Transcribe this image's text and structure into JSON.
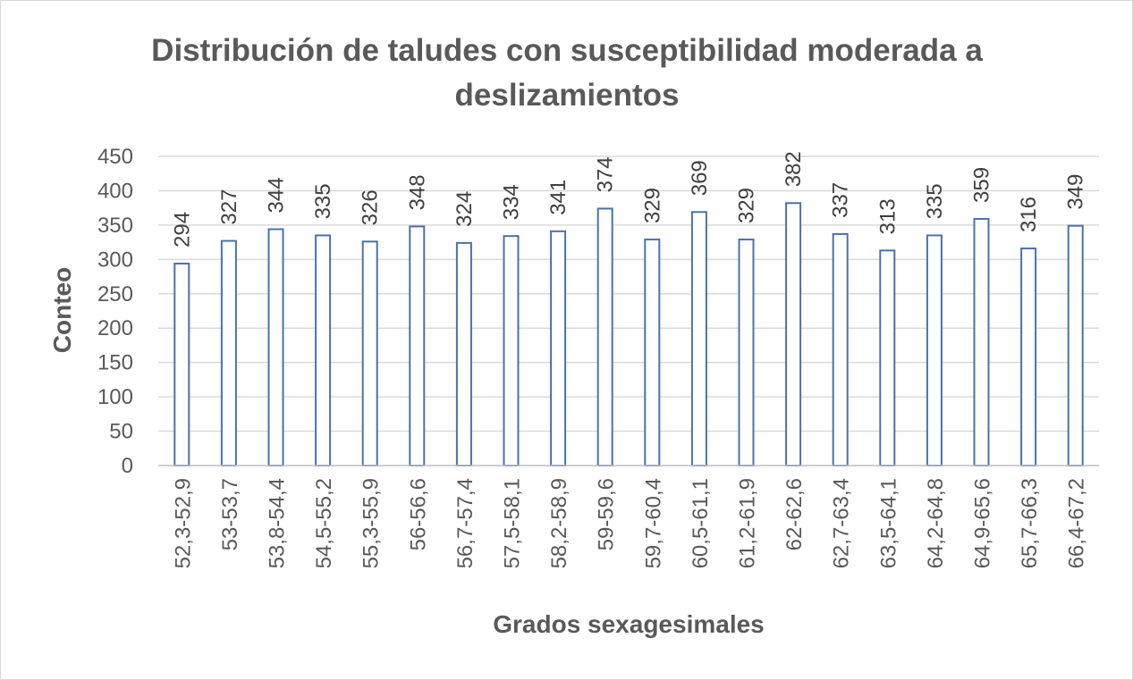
{
  "chart_data": {
    "type": "bar",
    "title_lines": [
      "Distribución de taludes con susceptibilidad moderada a",
      "deslizamientos"
    ],
    "xlabel": "Grados sexagesimales",
    "ylabel": "Conteo",
    "ylim": [
      0,
      450
    ],
    "yticks": [
      0,
      50,
      100,
      150,
      200,
      250,
      300,
      350,
      400,
      450
    ],
    "grid": true,
    "legend": "none",
    "categories": [
      "52,3-52,9",
      "53-53,7",
      "53,8-54,4",
      "54,5-55,2",
      "55,3-55,9",
      "56-56,6",
      "56,7-57,4",
      "57,5-58,1",
      "58,2-58,9",
      "59-59,6",
      "59,7-60,4",
      "60,5-61,1",
      "61,2-61,9",
      "62-62,6",
      "62,7-63,4",
      "63,5-64,1",
      "64,2-64,8",
      "64,9-65,6",
      "65,7-66,3",
      "66,4-67,2"
    ],
    "values": [
      294,
      327,
      344,
      335,
      326,
      348,
      324,
      334,
      341,
      374,
      329,
      369,
      329,
      382,
      337,
      313,
      335,
      359,
      316,
      349
    ],
    "colors": {
      "bar_stroke": "#4a72a8",
      "bar_fill": "#ffffff",
      "gridline": "#d9d9d9",
      "axis_line": "#bfbfbf",
      "text": "#595959"
    }
  }
}
